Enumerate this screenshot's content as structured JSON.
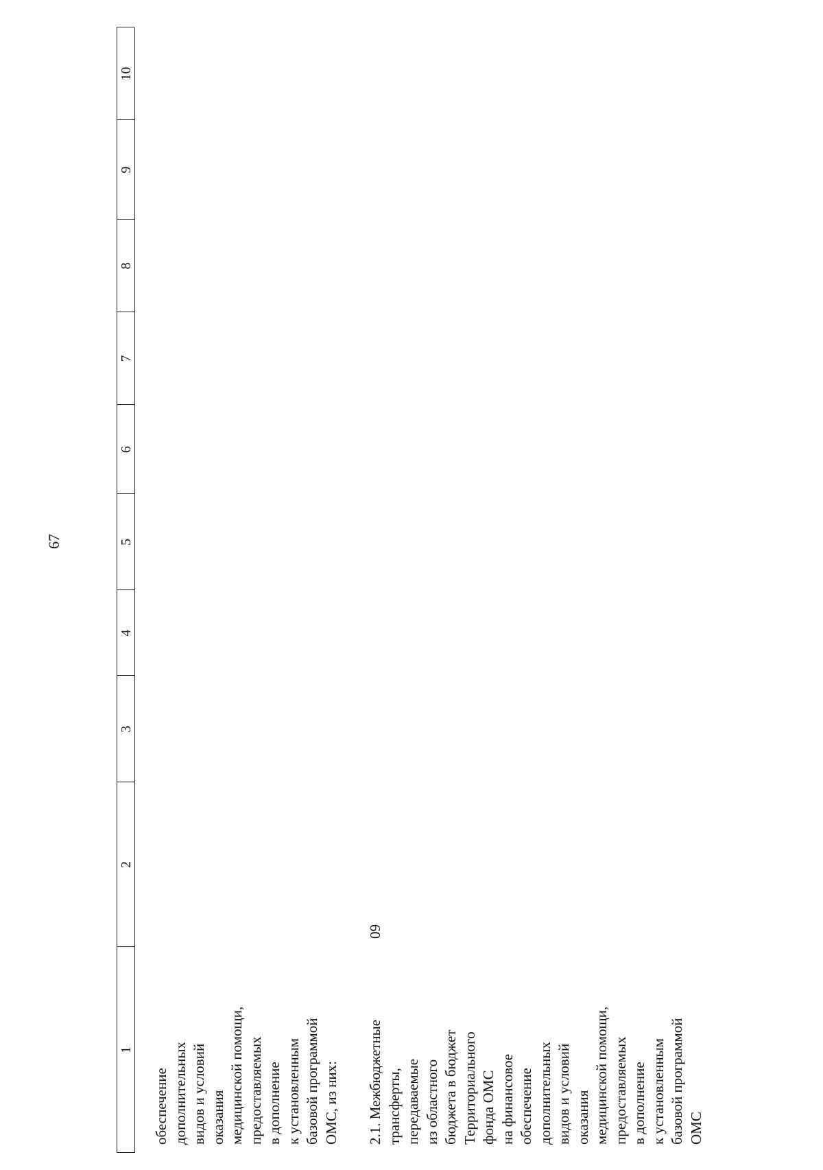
{
  "page_number": "67",
  "table": {
    "header": [
      "1",
      "2",
      "3",
      "4",
      "5",
      "6",
      "7",
      "8",
      "9",
      "10"
    ],
    "rows": [
      {
        "cells": [
          [
            "обеспечение",
            "дополнительных",
            "видов и условий",
            "оказания",
            "медицинской помощи,",
            "предоставляемых",
            "в дополнение",
            "к установленным",
            "базовой программой",
            "ОМС, из них:"
          ]
        ]
      },
      {
        "cells": [
          [
            "2.1. Межбюджетные",
            "трансферты,",
            "передаваемые",
            "из областного",
            "бюджета в бюджет",
            "Территориального",
            "фонда ОМС",
            "на финансовое",
            "обеспечение",
            "дополнительных",
            "видов и условий",
            "оказания",
            "медицинской помощи,",
            "предоставляемых",
            "в дополнение",
            "к установленным",
            "базовой программой",
            "ОМС"
          ],
          [
            "09"
          ]
        ]
      }
    ]
  }
}
